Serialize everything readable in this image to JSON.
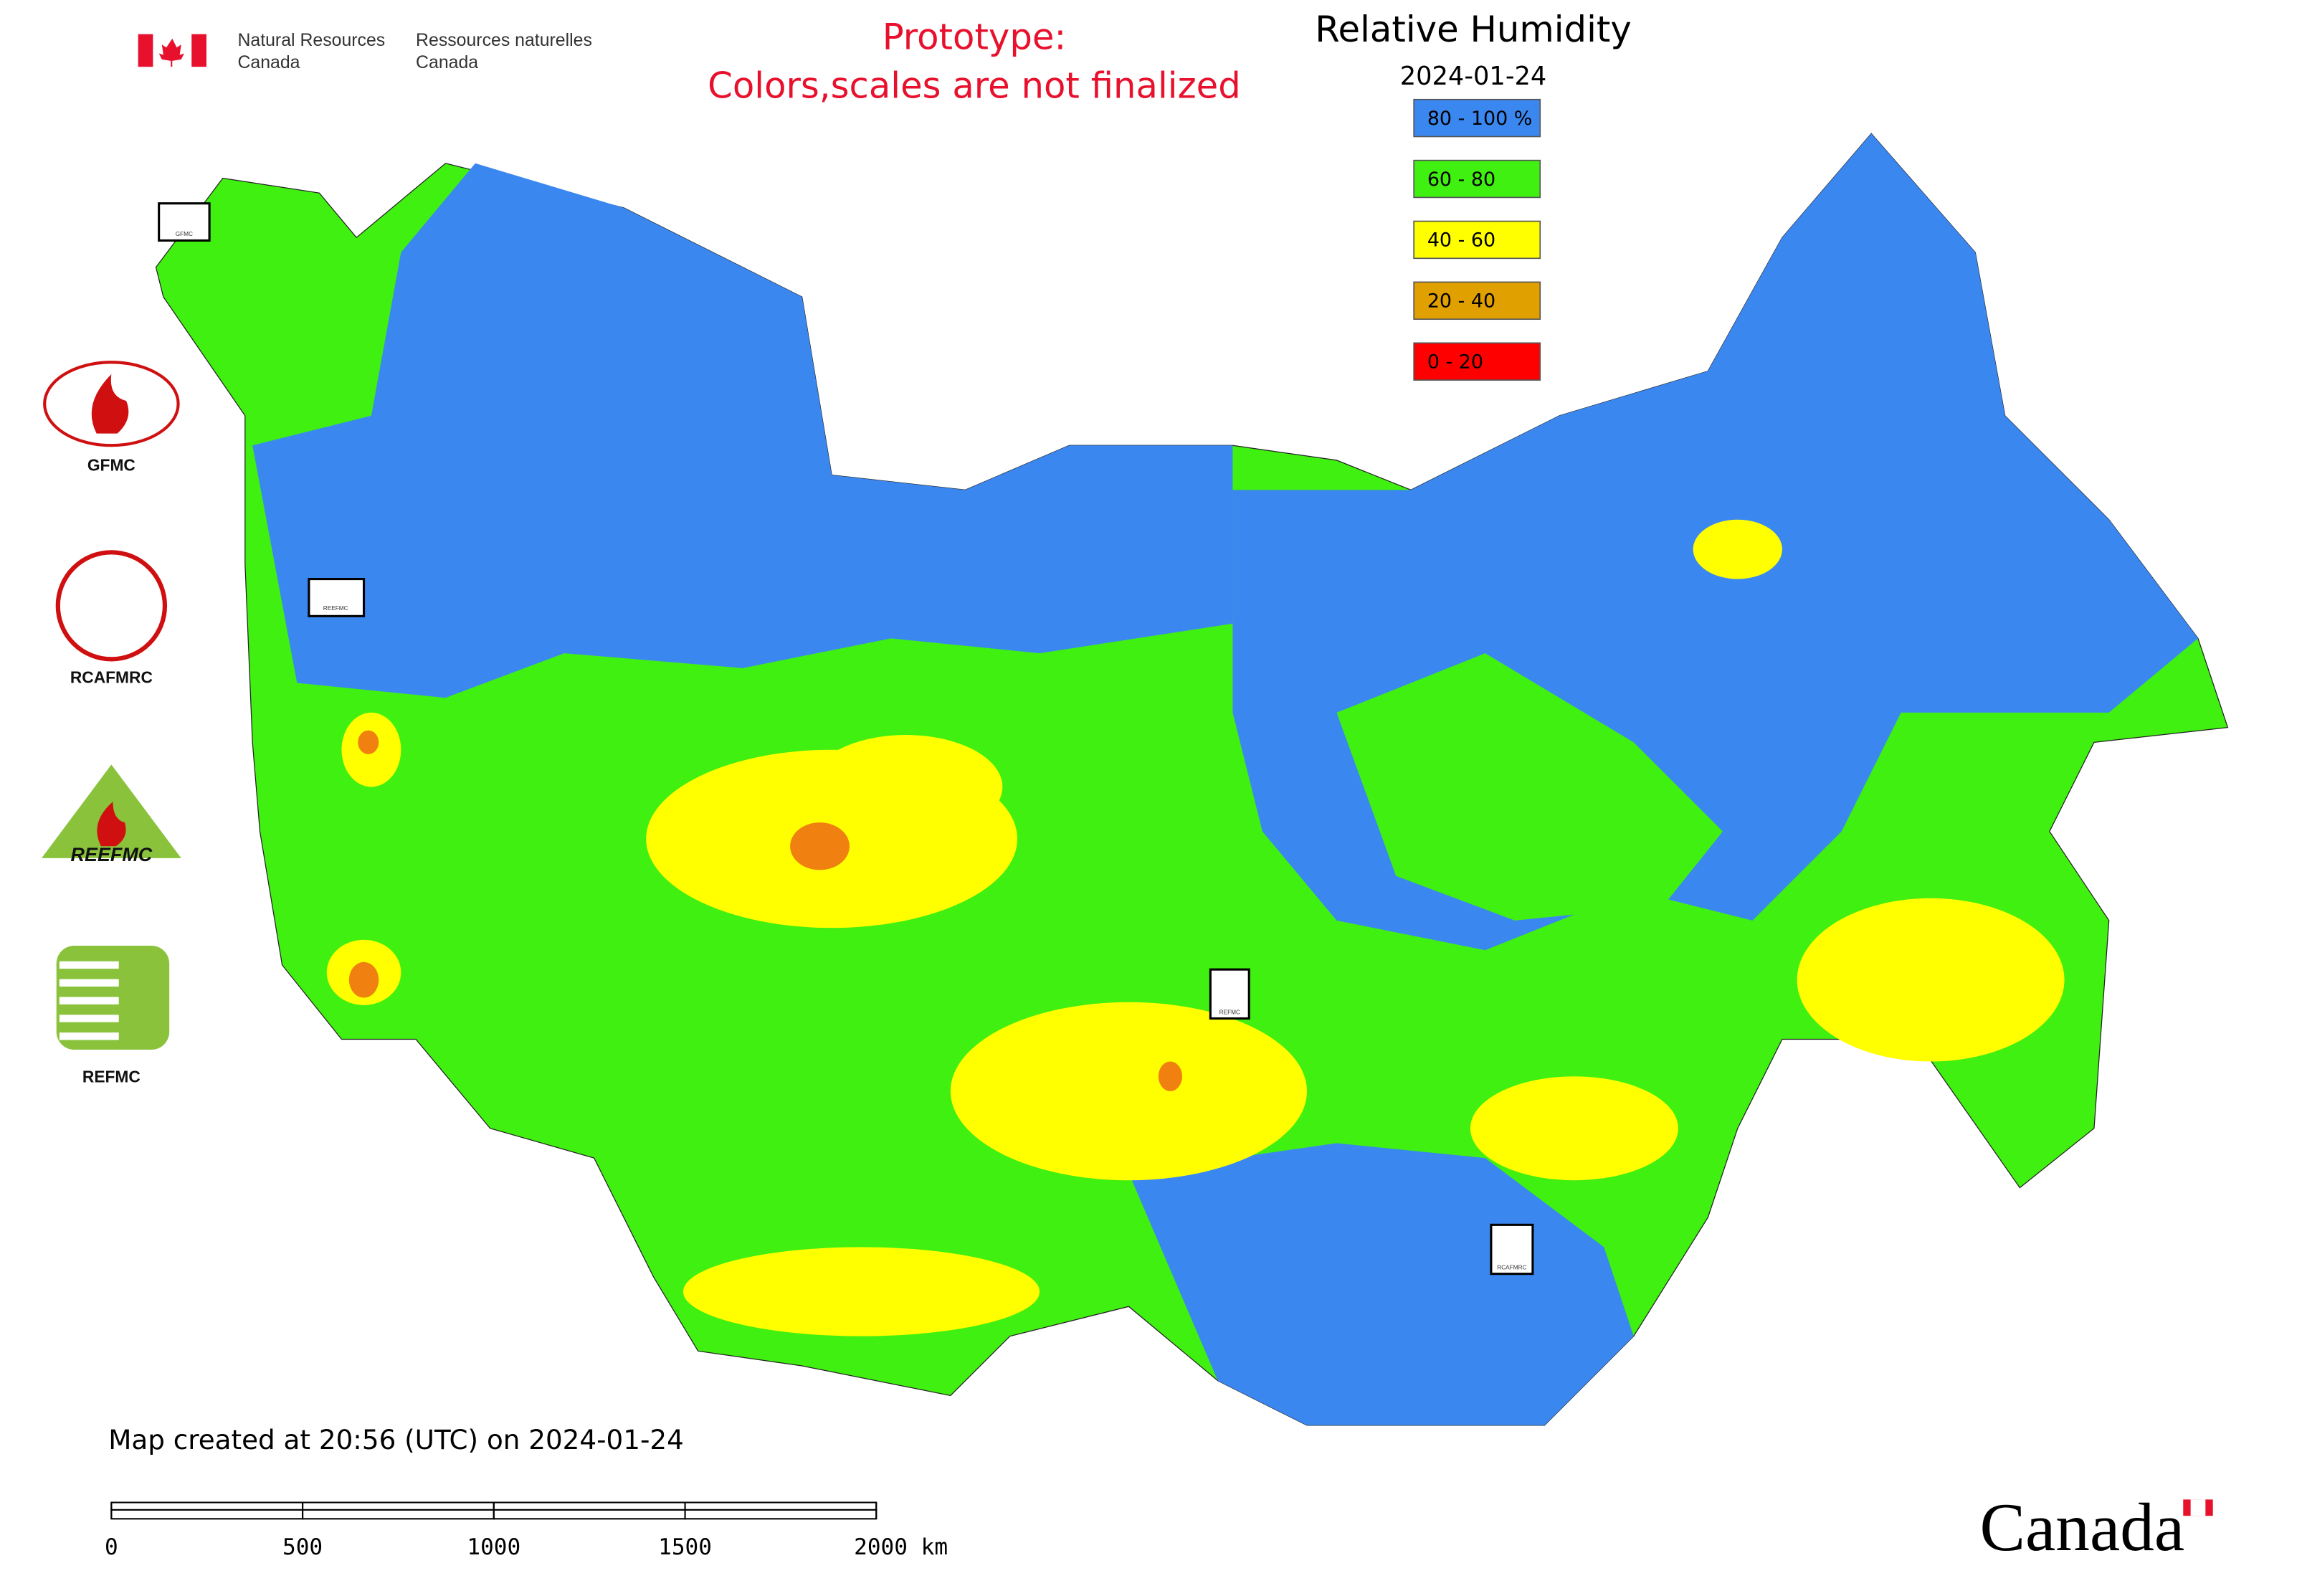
{
  "header": {
    "en": [
      "Natural Resources",
      "Canada"
    ],
    "fr": [
      "Ressources naturelles",
      "Canada"
    ]
  },
  "notice": [
    "Prototype:",
    "Colors,scales are not finalized"
  ],
  "legend": {
    "title": "Relative Humidity",
    "date": "2024-01-24",
    "items": [
      {
        "label": "80 - 100 %",
        "color": "#3b87f0"
      },
      {
        "label": "60 - 80",
        "color": "#40f010"
      },
      {
        "label": "40 - 60",
        "color": "#ffff00"
      },
      {
        "label": "20 - 40",
        "color": "#e0a000"
      },
      {
        "label": "0 - 20",
        "color": "#ff0000"
      }
    ]
  },
  "logos": [
    "GFMC",
    "RCAFMRC",
    "REEFMC",
    "REFMC"
  ],
  "footer": {
    "created": "Map created at 20:56 (UTC) on 2024-01-24",
    "scale_ticks": [
      0,
      500,
      1000,
      1500,
      {
        "value": 2000,
        "label": "2000 km"
      }
    ],
    "wordmark": "Canada"
  }
}
